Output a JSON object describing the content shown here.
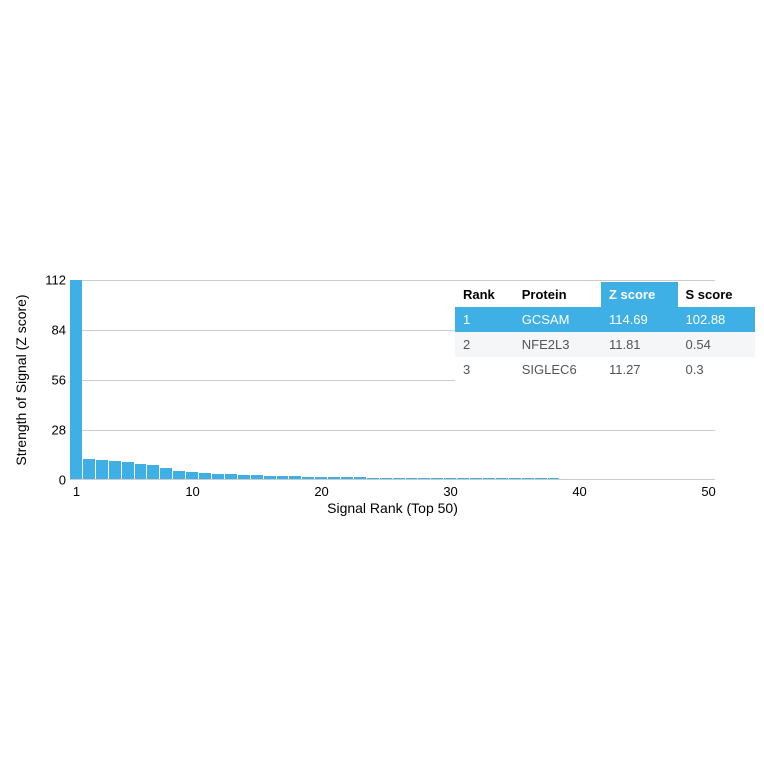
{
  "chart": {
    "type": "bar",
    "y_label": "Strength of Signal (Z score)",
    "x_label": "Signal Rank (Top 50)",
    "y_max": 112,
    "y_ticks": [
      0,
      28,
      56,
      84,
      112
    ],
    "x_ticks": [
      1,
      10,
      20,
      30,
      40,
      50
    ],
    "x_min": 1,
    "x_max": 50,
    "bar_color": "#3eb0e5",
    "grid_color": "#cccccc",
    "background_color": "#ffffff",
    "label_fontsize": 14,
    "tick_fontsize": 13,
    "values": [
      114.69,
      11.81,
      11.27,
      10.5,
      10.0,
      9.2,
      8.2,
      6.5,
      5.0,
      4.5,
      4.0,
      3.5,
      3.3,
      3.0,
      2.6,
      2.4,
      2.2,
      2.0,
      1.9,
      1.8,
      1.7,
      1.6,
      1.5,
      1.4,
      1.35,
      1.3,
      1.25,
      1.2,
      1.15,
      1.1,
      1.05,
      1.0,
      0.98,
      0.95,
      0.92,
      0.9,
      0.88,
      0.85,
      0.82,
      0.8,
      0.78,
      0.76,
      0.74,
      0.72,
      0.7,
      0.68,
      0.66,
      0.64,
      0.62,
      0.6
    ]
  },
  "table": {
    "columns": [
      "Rank",
      "Protein",
      "Z score",
      "S score"
    ],
    "sorted_col_index": 2,
    "header_bg": "#ffffff",
    "header_sorted_bg": "#3eb0e5",
    "header_color": "#000000",
    "header_sorted_color": "#ffffff",
    "row_highlight_bg": "#3eb0e5",
    "row_highlight_color": "#ffffff",
    "row_alt_bg": "#f4f6f7",
    "row_bg": "#ffffff",
    "row_color": "#555555",
    "rows": [
      {
        "rank": "1",
        "protein": "GCSAM",
        "z": "114.69",
        "s": "102.88",
        "highlight": true
      },
      {
        "rank": "2",
        "protein": "NFE2L3",
        "z": "11.81",
        "s": "0.54",
        "highlight": false
      },
      {
        "rank": "3",
        "protein": "SIGLEC6",
        "z": "11.27",
        "s": "0.3",
        "highlight": false
      }
    ]
  }
}
